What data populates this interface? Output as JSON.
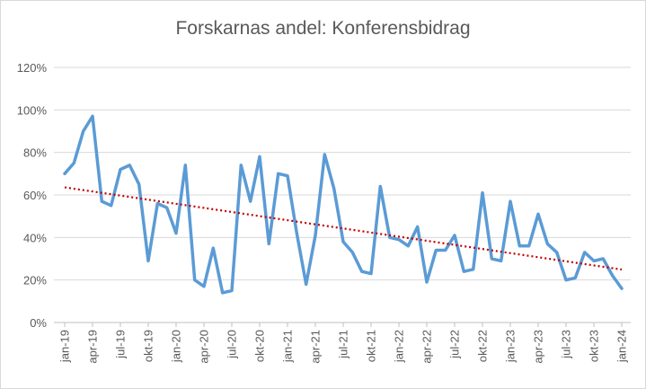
{
  "chart_data": {
    "type": "line",
    "title": "Forskarnas andel: Konferensbidrag",
    "xlabel": "",
    "ylabel": "",
    "ylim": [
      0,
      120
    ],
    "y_tick_labels": [
      "0%",
      "20%",
      "40%",
      "60%",
      "80%",
      "100%",
      "120%"
    ],
    "y_ticks": [
      0,
      20,
      40,
      60,
      80,
      100,
      120
    ],
    "x_tick_labels": [
      "jan-19",
      "apr-19",
      "jul-19",
      "okt-19",
      "jan-20",
      "apr-20",
      "jul-20",
      "okt-20",
      "jan-21",
      "apr-21",
      "jul-21",
      "okt-21",
      "jan-22",
      "apr-22",
      "jul-22",
      "okt-22",
      "jan-23",
      "apr-23",
      "jul-23",
      "okt-23",
      "jan-24"
    ],
    "x": [
      "jan-19",
      "feb-19",
      "mar-19",
      "apr-19",
      "maj-19",
      "jun-19",
      "jul-19",
      "aug-19",
      "sep-19",
      "okt-19",
      "nov-19",
      "dec-19",
      "jan-20",
      "feb-20",
      "mar-20",
      "apr-20",
      "maj-20",
      "jun-20",
      "jul-20",
      "aug-20",
      "sep-20",
      "okt-20",
      "nov-20",
      "dec-20",
      "jan-21",
      "feb-21",
      "mar-21",
      "apr-21",
      "maj-21",
      "jun-21",
      "jul-21",
      "aug-21",
      "sep-21",
      "okt-21",
      "nov-21",
      "dec-21",
      "jan-22",
      "feb-22",
      "mar-22",
      "apr-22",
      "maj-22",
      "jun-22",
      "jul-22",
      "aug-22",
      "sep-22",
      "okt-22",
      "nov-22",
      "dec-22",
      "jan-23",
      "feb-23",
      "mar-23",
      "apr-23",
      "maj-23",
      "jun-23",
      "jul-23",
      "aug-23",
      "sep-23",
      "okt-23",
      "nov-23",
      "dec-23",
      "jan-24"
    ],
    "series": [
      {
        "values": [
          70,
          75,
          90,
          97,
          57,
          55,
          72,
          74,
          65,
          29,
          56,
          54,
          42,
          74,
          20,
          17,
          35,
          14,
          15,
          74,
          57,
          78,
          37,
          70,
          69,
          42,
          18,
          41,
          79,
          63,
          38,
          33,
          24,
          23,
          64,
          40,
          39,
          36,
          45,
          19,
          34,
          34,
          41,
          24,
          25,
          61,
          30,
          29,
          57,
          36,
          36,
          51,
          37,
          33,
          20,
          21,
          33,
          29,
          30,
          22,
          16
        ],
        "color": "#5b9bd5"
      }
    ],
    "trendline": {
      "type": "linear",
      "style": "dotted",
      "color": "#c00000"
    },
    "grid": true,
    "legend": "none"
  }
}
